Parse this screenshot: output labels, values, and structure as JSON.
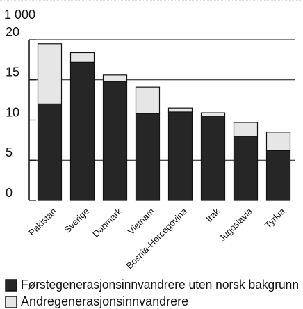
{
  "chart_data": {
    "type": "stacked_bar",
    "y_unit_label": "1 000",
    "categories": [
      "Pakistan",
      "Sverige",
      "Danmark",
      "Vietnam",
      "Bosnia-Hercegovina",
      "Irak",
      "Jugoslavia",
      "Tyrkia"
    ],
    "series": [
      {
        "name": "Førstegenerasjonsinnvandrere uten norsk bakgrunn",
        "color": "#262626",
        "values": [
          12,
          17.2,
          14.8,
          10.8,
          11,
          10.5,
          8,
          6.2
        ]
      },
      {
        "name": "Andregenerasjonsinnvandrere",
        "color": "#e6e6e6",
        "values": [
          7.5,
          1.2,
          0.8,
          3.3,
          0.5,
          0.4,
          1.7,
          2.3
        ]
      }
    ],
    "ylim": [
      0,
      20
    ],
    "yticks": [
      0,
      5,
      10,
      15,
      20
    ],
    "grid": true
  }
}
